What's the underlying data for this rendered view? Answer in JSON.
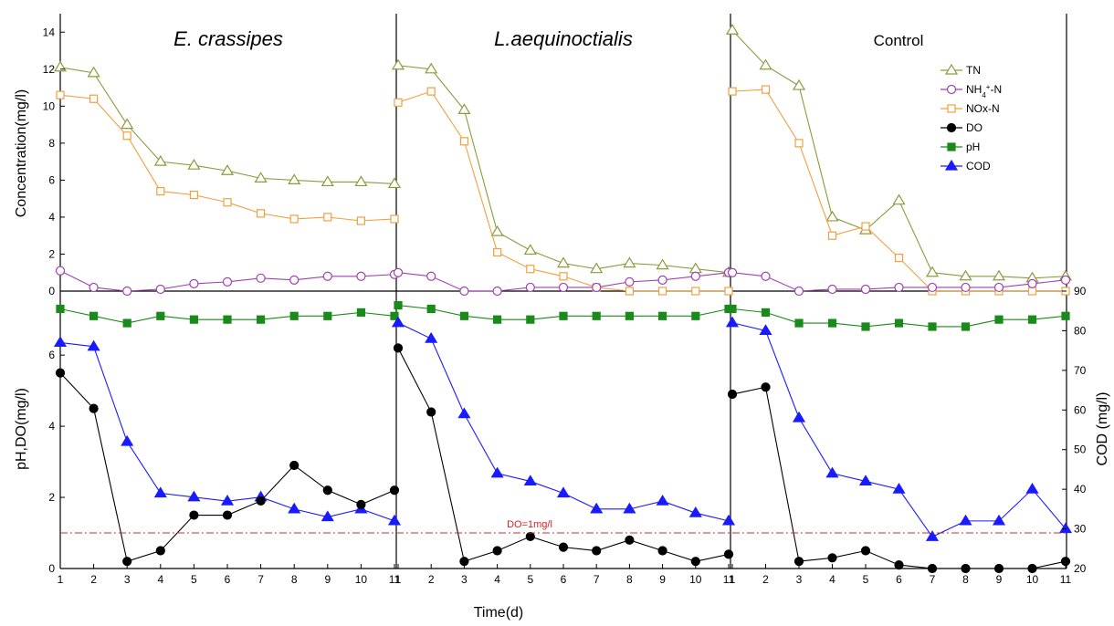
{
  "chart_data": {
    "type": "line",
    "xlabel": "Time(d)",
    "x": [
      1,
      2,
      3,
      4,
      5,
      6,
      7,
      8,
      9,
      10,
      11
    ],
    "x_ticks": [
      "1",
      "2",
      "3",
      "4",
      "5",
      "6",
      "7",
      "8",
      "9",
      "10",
      "11"
    ],
    "top_ylabel": "Concentration(mg/l)",
    "top_ylim": [
      0,
      15
    ],
    "top_yticks": [
      "0",
      "2",
      "4",
      "6",
      "8",
      "10",
      "12",
      "14"
    ],
    "bottom_left_ylabel": "pH,DO(mg/l)",
    "bottom_left_ylim": [
      0,
      7.8
    ],
    "bottom_left_yticks": [
      "0",
      "2",
      "4",
      "6"
    ],
    "bottom_right_ylabel": "COD (mg/l)",
    "bottom_right_ylim": [
      20,
      90
    ],
    "bottom_right_yticks": [
      "20",
      "30",
      "40",
      "50",
      "60",
      "70",
      "80",
      "90"
    ],
    "reference_line": {
      "value": 1.0,
      "label": "DO=1mg/l",
      "color": "#c03030"
    },
    "legend": [
      {
        "name": "TN",
        "html": "TN",
        "marker": "triangle-open",
        "color": "#8c9a3c"
      },
      {
        "name": "NH4+-N",
        "html": "NH<tspan baseline-shift='sub' font-size='8'>4</tspan><tspan baseline-shift='super' font-size='8'>+</tspan>-N",
        "marker": "circle-open",
        "color": "#a040b0"
      },
      {
        "name": "NOx-N",
        "html": "NOx-N",
        "marker": "square-open",
        "color": "#f0a040"
      },
      {
        "name": "DO",
        "html": "DO",
        "marker": "circle",
        "color": "#000000"
      },
      {
        "name": "pH",
        "html": "pH",
        "marker": "square",
        "color": "#1a8a1a"
      },
      {
        "name": "COD",
        "html": "COD",
        "marker": "triangle",
        "color": "#1a1aff"
      }
    ],
    "panels": [
      {
        "title": "E. crassipes",
        "title_style": "italic",
        "series": {
          "TN": [
            12.1,
            11.8,
            9.0,
            7.0,
            6.8,
            6.5,
            6.1,
            6.0,
            5.9,
            5.9,
            5.8
          ],
          "NH4": [
            1.1,
            0.2,
            0.0,
            0.1,
            0.4,
            0.5,
            0.7,
            0.6,
            0.8,
            0.8,
            0.9
          ],
          "NOx": [
            10.6,
            10.4,
            8.4,
            5.4,
            5.2,
            4.8,
            4.2,
            3.9,
            4.0,
            3.8,
            3.9
          ],
          "pH": [
            7.3,
            7.1,
            6.9,
            7.1,
            7.0,
            7.0,
            7.0,
            7.1,
            7.1,
            7.2,
            7.1
          ],
          "DO": [
            5.5,
            4.5,
            0.2,
            0.5,
            1.5,
            1.5,
            1.9,
            2.9,
            2.2,
            1.8,
            2.2
          ],
          "COD": [
            77,
            76,
            52,
            39,
            38,
            37,
            38,
            35,
            33,
            35,
            32
          ]
        }
      },
      {
        "title": "L.aequinoctialis",
        "title_style": "italic",
        "series": {
          "TN": [
            12.2,
            12.0,
            9.8,
            3.2,
            2.2,
            1.5,
            1.2,
            1.5,
            1.4,
            1.2,
            1.0
          ],
          "NH4": [
            1.0,
            0.8,
            0.0,
            0.0,
            0.2,
            0.2,
            0.2,
            0.5,
            0.6,
            0.8,
            1.0
          ],
          "NOx": [
            10.2,
            10.8,
            8.1,
            2.1,
            1.2,
            0.8,
            0.2,
            0.0,
            0.0,
            0.0,
            0.0
          ],
          "pH": [
            7.4,
            7.3,
            7.1,
            7.0,
            7.0,
            7.1,
            7.1,
            7.1,
            7.1,
            7.1,
            7.3
          ],
          "DO": [
            6.2,
            4.4,
            0.2,
            0.5,
            0.9,
            0.6,
            0.5,
            0.8,
            0.5,
            0.2,
            0.4
          ],
          "COD": [
            82,
            78,
            59,
            44,
            42,
            39,
            35,
            35,
            37,
            34,
            32
          ]
        }
      },
      {
        "title": "Control",
        "title_style": "normal",
        "series": {
          "TN": [
            14.1,
            12.2,
            11.1,
            4.0,
            3.3,
            4.9,
            1.0,
            0.8,
            0.8,
            0.7,
            0.8
          ],
          "NH4": [
            1.0,
            0.8,
            0.0,
            0.1,
            0.1,
            0.2,
            0.2,
            0.2,
            0.2,
            0.4,
            0.6
          ],
          "NOx": [
            10.8,
            10.9,
            8.0,
            3.0,
            3.5,
            1.8,
            0.0,
            0.0,
            0.0,
            0.0,
            0.0
          ],
          "pH": [
            7.3,
            7.2,
            6.9,
            6.9,
            6.8,
            6.9,
            6.8,
            6.8,
            7.0,
            7.0,
            7.1
          ],
          "DO": [
            4.9,
            5.1,
            0.2,
            0.3,
            0.5,
            0.1,
            0.0,
            0.0,
            0.0,
            0.0,
            0.2
          ],
          "COD": [
            82,
            80,
            58,
            44,
            42,
            40,
            28,
            32,
            32,
            40,
            30
          ]
        }
      }
    ]
  }
}
